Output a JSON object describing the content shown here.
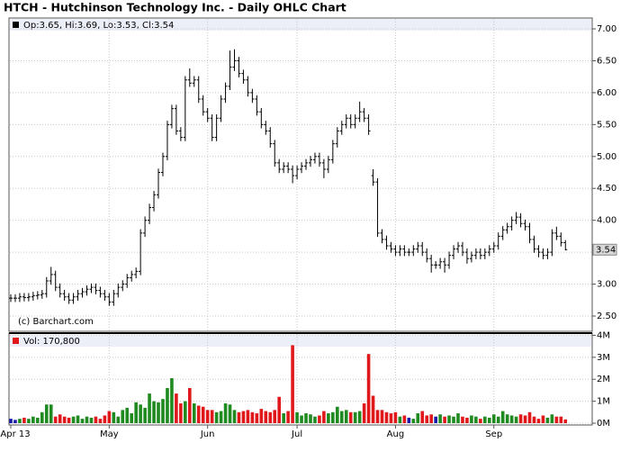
{
  "chart_data": [
    {
      "type": "ohlc",
      "title": "HTCH - Hutchinson Technology Inc. - Daily OHLC Chart",
      "legend_text": "Op:3.65, Hi:3.69, Lo:3.53, Cl:3.54",
      "legend_color": "#000000",
      "credit": "(c) Barchart.com",
      "color": "#000000",
      "open": [
        2.78,
        2.78,
        2.78,
        2.8,
        2.79,
        2.8,
        2.82,
        2.83,
        2.85,
        3.05,
        3.15,
        2.95,
        2.85,
        2.8,
        2.75,
        2.8,
        2.85,
        2.88,
        2.92,
        2.95,
        2.9,
        2.85,
        2.8,
        2.72,
        2.85,
        2.95,
        3.0,
        3.1,
        3.15,
        3.2,
        3.8,
        4.0,
        4.2,
        4.4,
        4.75,
        5.0,
        5.5,
        5.75,
        5.4,
        5.3,
        6.2,
        6.15,
        6.2,
        5.9,
        5.7,
        5.6,
        5.3,
        5.6,
        5.9,
        6.1,
        6.4,
        6.5,
        6.3,
        6.2,
        6.0,
        5.9,
        5.7,
        5.5,
        5.4,
        5.2,
        4.9,
        4.8,
        4.85,
        4.8,
        4.7,
        4.8,
        4.85,
        4.9,
        4.95,
        5.0,
        4.9,
        4.8,
        4.95,
        5.2,
        5.4,
        5.5,
        5.6,
        5.5,
        5.6,
        5.7,
        5.6,
        4.7,
        4.6,
        3.8,
        3.7,
        3.6,
        3.55,
        3.5,
        3.55,
        3.5,
        3.5,
        3.55,
        3.6,
        3.5,
        3.4,
        3.3,
        3.3,
        3.35,
        3.3,
        3.45,
        3.55,
        3.6,
        3.5,
        3.4,
        3.45,
        3.5,
        3.45,
        3.5,
        3.55,
        3.6,
        3.75,
        3.85,
        3.9,
        4.0,
        4.05,
        3.95,
        3.9,
        3.7,
        3.55,
        3.5,
        3.45,
        3.5,
        3.8,
        3.75,
        3.65
      ],
      "high": [
        2.84,
        2.84,
        2.86,
        2.86,
        2.86,
        2.88,
        2.89,
        2.91,
        3.11,
        3.27,
        3.21,
        3.01,
        2.91,
        2.86,
        2.86,
        2.91,
        2.94,
        2.98,
        3.01,
        3.01,
        2.96,
        2.91,
        2.86,
        2.91,
        3.01,
        3.06,
        3.16,
        3.21,
        3.26,
        3.86,
        4.06,
        4.26,
        4.46,
        4.81,
        5.06,
        5.56,
        5.81,
        5.81,
        5.46,
        6.26,
        6.38,
        6.26,
        6.26,
        5.96,
        5.76,
        5.66,
        5.66,
        5.96,
        6.16,
        6.66,
        6.68,
        6.56,
        6.36,
        6.26,
        6.06,
        5.96,
        5.76,
        5.56,
        5.46,
        5.26,
        4.96,
        4.91,
        4.91,
        4.86,
        4.86,
        4.91,
        4.96,
        5.01,
        5.06,
        5.06,
        4.96,
        5.01,
        5.26,
        5.46,
        5.56,
        5.66,
        5.66,
        5.66,
        5.86,
        5.76,
        5.66,
        4.8,
        4.66,
        3.86,
        3.76,
        3.66,
        3.61,
        3.61,
        3.61,
        3.56,
        3.61,
        3.66,
        3.66,
        3.56,
        3.46,
        3.36,
        3.41,
        3.41,
        3.51,
        3.61,
        3.66,
        3.66,
        3.56,
        3.51,
        3.56,
        3.56,
        3.56,
        3.61,
        3.66,
        3.81,
        3.91,
        3.96,
        4.06,
        4.13,
        4.11,
        4.01,
        3.96,
        3.76,
        3.61,
        3.56,
        3.56,
        3.86,
        3.9,
        3.81,
        3.69
      ],
      "low": [
        2.72,
        2.72,
        2.72,
        2.73,
        2.73,
        2.74,
        2.76,
        2.77,
        2.79,
        2.99,
        2.89,
        2.79,
        2.74,
        2.69,
        2.69,
        2.74,
        2.79,
        2.82,
        2.86,
        2.84,
        2.79,
        2.74,
        2.66,
        2.66,
        2.79,
        2.89,
        2.94,
        3.04,
        3.09,
        3.14,
        3.74,
        3.94,
        4.14,
        4.34,
        4.69,
        4.94,
        5.44,
        5.34,
        5.24,
        5.24,
        6.09,
        6.09,
        5.84,
        5.64,
        5.54,
        5.24,
        5.24,
        5.54,
        5.84,
        6.04,
        6.34,
        6.24,
        6.14,
        5.94,
        5.84,
        5.64,
        5.44,
        5.34,
        5.14,
        4.84,
        4.74,
        4.74,
        4.74,
        4.58,
        4.64,
        4.74,
        4.79,
        4.84,
        4.89,
        4.84,
        4.66,
        4.74,
        4.89,
        5.14,
        5.34,
        5.44,
        5.44,
        5.44,
        5.54,
        5.54,
        5.34,
        4.54,
        3.74,
        3.64,
        3.54,
        3.49,
        3.44,
        3.44,
        3.44,
        3.44,
        3.44,
        3.49,
        3.44,
        3.34,
        3.18,
        3.24,
        3.24,
        3.18,
        3.24,
        3.39,
        3.49,
        3.44,
        3.32,
        3.34,
        3.39,
        3.39,
        3.39,
        3.44,
        3.49,
        3.54,
        3.69,
        3.79,
        3.84,
        3.94,
        3.89,
        3.84,
        3.64,
        3.49,
        3.42,
        3.39,
        3.39,
        3.44,
        3.69,
        3.59,
        3.53
      ],
      "close": [
        2.78,
        2.78,
        2.8,
        2.79,
        2.8,
        2.82,
        2.83,
        2.85,
        3.05,
        3.15,
        2.95,
        2.85,
        2.8,
        2.75,
        2.8,
        2.85,
        2.88,
        2.92,
        2.95,
        2.9,
        2.85,
        2.8,
        2.72,
        2.85,
        2.95,
        3.0,
        3.1,
        3.15,
        3.2,
        3.8,
        4.0,
        4.2,
        4.4,
        4.75,
        5.0,
        5.5,
        5.75,
        5.4,
        5.3,
        6.2,
        6.15,
        6.2,
        5.9,
        5.7,
        5.6,
        5.3,
        5.6,
        5.9,
        6.1,
        6.4,
        6.5,
        6.3,
        6.2,
        6.0,
        5.9,
        5.7,
        5.5,
        5.4,
        5.2,
        4.9,
        4.8,
        4.85,
        4.8,
        4.7,
        4.8,
        4.85,
        4.9,
        4.95,
        5.0,
        4.9,
        4.8,
        4.95,
        5.2,
        5.4,
        5.5,
        5.6,
        5.5,
        5.6,
        5.7,
        5.6,
        5.4,
        4.6,
        3.8,
        3.7,
        3.6,
        3.55,
        3.5,
        3.55,
        3.5,
        3.5,
        3.55,
        3.6,
        3.5,
        3.4,
        3.3,
        3.3,
        3.35,
        3.3,
        3.45,
        3.55,
        3.6,
        3.5,
        3.4,
        3.45,
        3.5,
        3.45,
        3.5,
        3.55,
        3.6,
        3.75,
        3.85,
        3.9,
        4.0,
        4.05,
        3.95,
        3.9,
        3.7,
        3.55,
        3.5,
        3.45,
        3.5,
        3.8,
        3.75,
        3.65,
        3.54
      ],
      "ylim": [
        2.26,
        7.17
      ],
      "yticks": [
        {
          "value": 2.5,
          "label": "2.50"
        },
        {
          "value": 3,
          "label": "3.00"
        },
        {
          "value": 3.5,
          "label": "3.50"
        },
        {
          "value": 4,
          "label": "4.00"
        },
        {
          "value": 4.5,
          "label": "4.50"
        },
        {
          "value": 5,
          "label": "5.00"
        },
        {
          "value": 5.5,
          "label": "5.50"
        },
        {
          "value": 6,
          "label": "6.00"
        },
        {
          "value": 6.5,
          "label": "6.50"
        },
        {
          "value": 7,
          "label": "7.00"
        }
      ],
      "grid": true
    },
    {
      "type": "bar",
      "legend_text": "Vol: 170,800",
      "legend_color": "#e0181b",
      "up_color": "#1f8a1f",
      "down_color": "#e0181b",
      "flat_color": "#1a1aa8",
      "categories": [
        "Apr 13",
        null,
        null,
        null,
        null,
        null,
        null,
        null,
        null,
        null,
        null,
        null,
        null,
        null,
        null,
        null,
        null,
        null,
        null,
        null,
        null,
        null,
        "May",
        null,
        null,
        null,
        null,
        null,
        null,
        null,
        null,
        null,
        null,
        null,
        null,
        null,
        null,
        null,
        null,
        null,
        null,
        null,
        null,
        null,
        "Jun",
        null,
        null,
        null,
        null,
        null,
        null,
        null,
        null,
        null,
        null,
        null,
        null,
        null,
        null,
        null,
        null,
        null,
        null,
        null,
        "Jul",
        null,
        null,
        null,
        null,
        null,
        null,
        null,
        null,
        null,
        null,
        null,
        null,
        null,
        null,
        null,
        null,
        null,
        null,
        null,
        null,
        null,
        "Aug",
        null,
        null,
        null,
        null,
        null,
        null,
        null,
        null,
        null,
        null,
        null,
        null,
        null,
        null,
        null,
        null,
        null,
        null,
        null,
        null,
        null,
        "Sep",
        null,
        null,
        null,
        null,
        null,
        null,
        null,
        null,
        null,
        null,
        null,
        null,
        null,
        null,
        null,
        null
      ],
      "values": [
        0.2,
        0.15,
        0.2,
        0.25,
        0.2,
        0.3,
        0.25,
        0.5,
        0.85,
        0.85,
        0.3,
        0.4,
        0.3,
        0.25,
        0.3,
        0.35,
        0.2,
        0.3,
        0.25,
        0.3,
        0.2,
        0.35,
        0.55,
        0.5,
        0.3,
        0.6,
        0.7,
        0.45,
        0.95,
        0.85,
        0.7,
        1.35,
        1.0,
        0.95,
        1.1,
        1.6,
        2.05,
        1.35,
        0.9,
        1.0,
        1.6,
        0.9,
        0.8,
        0.75,
        0.6,
        0.6,
        0.5,
        0.55,
        0.9,
        0.85,
        0.6,
        0.5,
        0.55,
        0.6,
        0.5,
        0.45,
        0.65,
        0.55,
        0.5,
        0.6,
        1.2,
        0.45,
        0.55,
        3.55,
        0.5,
        0.35,
        0.45,
        0.4,
        0.3,
        0.35,
        0.55,
        0.45,
        0.5,
        0.75,
        0.55,
        0.6,
        0.5,
        0.5,
        0.55,
        0.9,
        3.15,
        1.25,
        0.6,
        0.6,
        0.5,
        0.45,
        0.5,
        0.3,
        0.35,
        0.25,
        0.2,
        0.45,
        0.55,
        0.35,
        0.4,
        0.3,
        0.4,
        0.3,
        0.35,
        0.3,
        0.45,
        0.3,
        0.25,
        0.35,
        0.3,
        0.2,
        0.3,
        0.25,
        0.4,
        0.3,
        0.55,
        0.4,
        0.35,
        0.3,
        0.4,
        0.35,
        0.5,
        0.3,
        0.2,
        0.35,
        0.25,
        0.4,
        0.3,
        0.3,
        0.1708
      ],
      "ylim": [
        0,
        4.1
      ],
      "yticks": [
        {
          "value": 0,
          "label": "0M"
        },
        {
          "value": 1,
          "label": "1M"
        },
        {
          "value": 2,
          "label": "2M"
        },
        {
          "value": 3,
          "label": "3M"
        },
        {
          "value": 4,
          "label": "4M"
        }
      ],
      "grid": true
    }
  ]
}
